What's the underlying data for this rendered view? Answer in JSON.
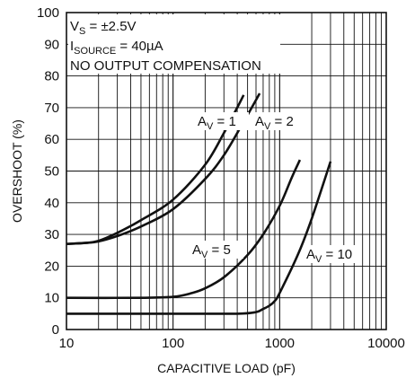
{
  "chart_data": {
    "type": "line",
    "xlabel": "CAPACITIVE LOAD (pF)",
    "ylabel": "OVERSHOOT (%)",
    "x_scale": "log",
    "xlim": [
      10,
      10000
    ],
    "ylim": [
      0,
      100
    ],
    "grid": true,
    "x_ticks": [
      "10",
      "100",
      "1000",
      "10000"
    ],
    "y_ticks": [
      "0",
      "10",
      "20",
      "30",
      "40",
      "50",
      "60",
      "70",
      "80",
      "90",
      "100"
    ],
    "conditions": [
      {
        "main": "V",
        "sub": "S",
        "rest": " = ±2.5V"
      },
      {
        "main": "I",
        "sub": "SOURCE",
        "rest": " = 40µA"
      },
      {
        "main": "NO OUTPUT COMPENSATION",
        "sub": "",
        "rest": ""
      }
    ],
    "series": [
      {
        "name": "AV = 1",
        "label_main": "A",
        "label_sub": "V",
        "label_rest": " = 1",
        "x": [
          10,
          15,
          20,
          30,
          50,
          100,
          200,
          300,
          400,
          460
        ],
        "y": [
          27,
          27.3,
          28,
          30.5,
          34.5,
          41,
          52,
          62,
          70,
          74
        ]
      },
      {
        "name": "AV = 2",
        "label_main": "A",
        "label_sub": "V",
        "label_rest": " = 2",
        "x": [
          10,
          15,
          20,
          30,
          50,
          100,
          200,
          300,
          450,
          650
        ],
        "y": [
          27,
          27.3,
          27.8,
          29.5,
          32.5,
          38,
          47.5,
          55,
          65,
          74.5
        ]
      },
      {
        "name": "AV = 5",
        "label_main": "A",
        "label_sub": "V",
        "label_rest": " = 5",
        "x": [
          10,
          50,
          100,
          150,
          200,
          300,
          500,
          700,
          1000,
          1300,
          1550
        ],
        "y": [
          10,
          10,
          10.3,
          11.5,
          13,
          16.5,
          23.5,
          30,
          39,
          48,
          53.5
        ]
      },
      {
        "name": "AV = 10",
        "label_main": "A",
        "label_sub": "V",
        "label_rest": " = 10",
        "x": [
          10,
          100,
          400,
          600,
          700,
          800,
          900,
          1000,
          1500,
          2000,
          3000
        ],
        "y": [
          5,
          5,
          5,
          5.5,
          6.5,
          7.5,
          9,
          11.5,
          24,
          35,
          53
        ]
      }
    ],
    "series_color": "#111111",
    "grid_color": "#111111"
  }
}
